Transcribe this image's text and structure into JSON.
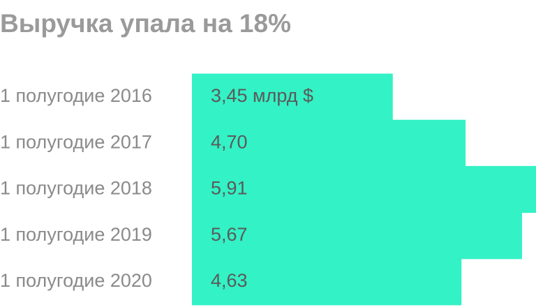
{
  "chart_data": {
    "type": "barh",
    "title": "Выручка упала на 18%",
    "categories": [
      "1 полугодие 2016",
      "1 полугодие 2017",
      "1 полугодие 2018",
      "1 полугодие 2019",
      "1 полугодие 2020"
    ],
    "values": [
      3.45,
      4.7,
      5.91,
      5.67,
      4.63
    ],
    "value_labels": [
      "3,45 млрд $",
      "4,70",
      "5,91",
      "5,67",
      "4,63"
    ],
    "color": "#33f2c5"
  }
}
